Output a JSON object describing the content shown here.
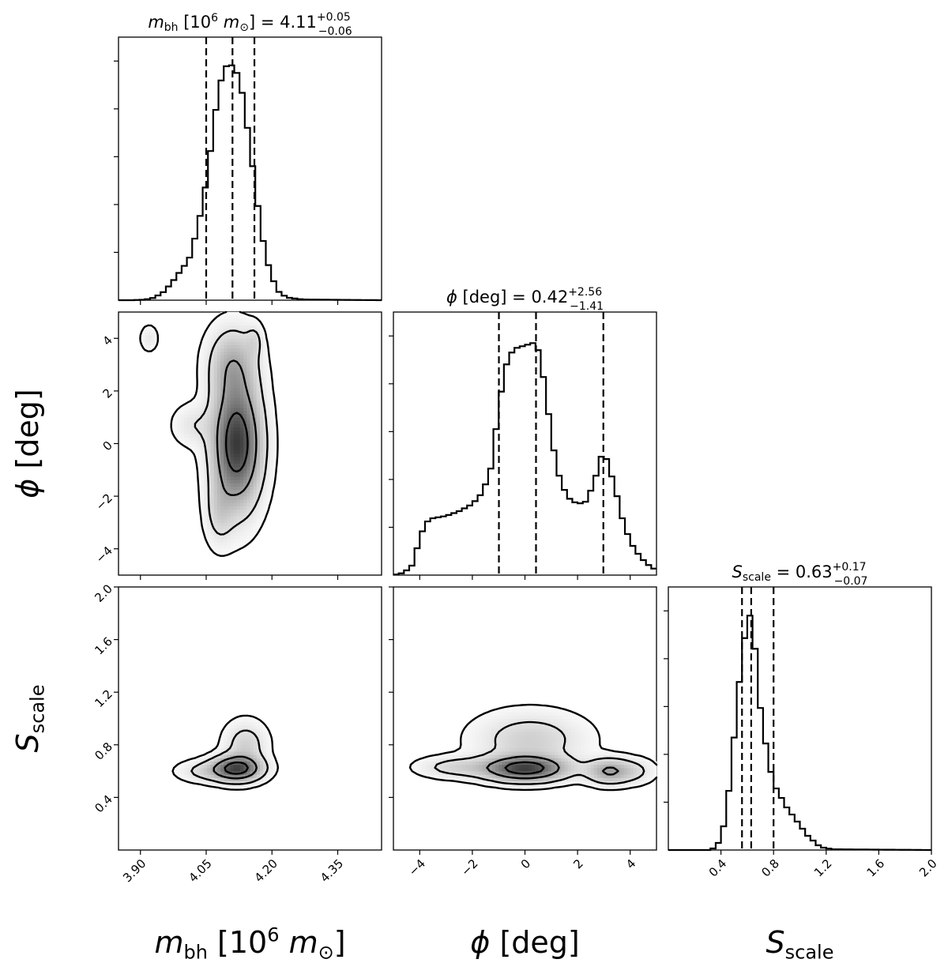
{
  "chart_data": {
    "type": "corner",
    "parameters": [
      {
        "key": "mbh",
        "label_main": "m",
        "label_sub": "bh",
        "label_unit_prefix": "[10",
        "label_unit_exp": "6",
        "label_unit_m": "m",
        "label_unit_sun": "⊙",
        "label_unit_close": "]",
        "range": [
          3.85,
          4.45
        ],
        "ticks": [
          "3.90",
          "4.05",
          "4.20",
          "4.35"
        ],
        "tick_values": [
          3.9,
          4.05,
          4.2,
          4.35
        ],
        "median": "4.11",
        "plus": "+0.05",
        "minus": "−0.06",
        "quantiles": [
          4.05,
          4.11,
          4.16
        ],
        "hist_density": [
          [
            3.85,
            0
          ],
          [
            3.88,
            0
          ],
          [
            3.91,
            0.002
          ],
          [
            3.93,
            0.01
          ],
          [
            3.95,
            0.03
          ],
          [
            3.97,
            0.07
          ],
          [
            3.99,
            0.12
          ],
          [
            4.01,
            0.17
          ],
          [
            4.02,
            0.22
          ],
          [
            4.03,
            0.32
          ],
          [
            4.04,
            0.38
          ],
          [
            4.05,
            0.5
          ],
          [
            4.06,
            0.63
          ],
          [
            4.07,
            0.78
          ],
          [
            4.08,
            0.9
          ],
          [
            4.09,
            0.97
          ],
          [
            4.1,
            1.0
          ],
          [
            4.11,
            0.99
          ],
          [
            4.12,
            0.96
          ],
          [
            4.13,
            0.9
          ],
          [
            4.14,
            0.78
          ],
          [
            4.15,
            0.65
          ],
          [
            4.16,
            0.51
          ],
          [
            4.17,
            0.37
          ],
          [
            4.18,
            0.25
          ],
          [
            4.19,
            0.16
          ],
          [
            4.2,
            0.1
          ],
          [
            4.21,
            0.05
          ],
          [
            4.22,
            0.025
          ],
          [
            4.24,
            0.01
          ],
          [
            4.27,
            0.003
          ],
          [
            4.45,
            0
          ]
        ]
      },
      {
        "key": "phi",
        "label_main": "ϕ",
        "label_unit": "[deg]",
        "range": [
          -5,
          5
        ],
        "ticks": [
          "−4",
          "−2",
          "0",
          "2",
          "4"
        ],
        "tick_values": [
          -4,
          -2,
          0,
          2,
          4
        ],
        "median": "0.42",
        "plus": "+2.56",
        "minus": "−1.41",
        "quantiles": [
          -0.99,
          0.42,
          2.98
        ],
        "hist_density": [
          [
            -5,
            0
          ],
          [
            -4.6,
            0.01
          ],
          [
            -4.3,
            0.04
          ],
          [
            -4.0,
            0.15
          ],
          [
            -3.8,
            0.22
          ],
          [
            -3.5,
            0.24
          ],
          [
            -3.0,
            0.25
          ],
          [
            -2.5,
            0.27
          ],
          [
            -2.0,
            0.3
          ],
          [
            -1.6,
            0.35
          ],
          [
            -1.3,
            0.45
          ],
          [
            -1.0,
            0.7
          ],
          [
            -0.8,
            0.85
          ],
          [
            -0.6,
            0.93
          ],
          [
            -0.3,
            0.96
          ],
          [
            0.0,
            0.97
          ],
          [
            0.3,
            0.98
          ],
          [
            0.5,
            0.95
          ],
          [
            0.8,
            0.78
          ],
          [
            1.0,
            0.58
          ],
          [
            1.3,
            0.42
          ],
          [
            1.6,
            0.33
          ],
          [
            2.0,
            0.3
          ],
          [
            2.3,
            0.31
          ],
          [
            2.6,
            0.38
          ],
          [
            2.9,
            0.5
          ],
          [
            3.1,
            0.49
          ],
          [
            3.4,
            0.38
          ],
          [
            3.7,
            0.24
          ],
          [
            4.0,
            0.14
          ],
          [
            4.3,
            0.09
          ],
          [
            4.6,
            0.05
          ],
          [
            5.0,
            0.02
          ]
        ]
      },
      {
        "key": "sscale",
        "label_main": "S",
        "label_sub": "scale",
        "range": [
          0,
          2
        ],
        "ticks": [
          "0.4",
          "0.8",
          "1.2",
          "1.6",
          "2.0"
        ],
        "tick_values": [
          0.4,
          0.8,
          1.2,
          1.6,
          2.0
        ],
        "median": "0.63",
        "plus": "+0.17",
        "minus": "−0.07",
        "quantiles": [
          0.56,
          0.63,
          0.8
        ],
        "hist_density": [
          [
            0,
            0
          ],
          [
            0.3,
            0
          ],
          [
            0.36,
            0.01
          ],
          [
            0.4,
            0.05
          ],
          [
            0.44,
            0.15
          ],
          [
            0.48,
            0.35
          ],
          [
            0.52,
            0.6
          ],
          [
            0.56,
            0.82
          ],
          [
            0.6,
            0.97
          ],
          [
            0.63,
            1.0
          ],
          [
            0.66,
            0.85
          ],
          [
            0.7,
            0.6
          ],
          [
            0.74,
            0.45
          ],
          [
            0.78,
            0.33
          ],
          [
            0.82,
            0.26
          ],
          [
            0.86,
            0.22
          ],
          [
            0.9,
            0.18
          ],
          [
            0.94,
            0.15
          ],
          [
            0.98,
            0.12
          ],
          [
            1.02,
            0.09
          ],
          [
            1.06,
            0.06
          ],
          [
            1.1,
            0.04
          ],
          [
            1.14,
            0.02
          ],
          [
            1.18,
            0.01
          ],
          [
            1.25,
            0.003
          ],
          [
            2.0,
            0
          ]
        ]
      }
    ],
    "joint_peaks": [
      {
        "x": "mbh",
        "y": "phi",
        "blobs": [
          {
            "cx": 4.12,
            "cy": 0.0,
            "sx": 0.035,
            "sy": 1.5,
            "w": 1.0
          },
          {
            "cx": 4.11,
            "cy": 3.0,
            "sx": 0.035,
            "sy": 0.9,
            "w": 0.35
          },
          {
            "cx": 4.08,
            "cy": -2.6,
            "sx": 0.02,
            "sy": 0.8,
            "w": 0.18
          },
          {
            "cx": 4.02,
            "cy": 0.7,
            "sx": 0.03,
            "sy": 0.5,
            "w": 0.12
          },
          {
            "cx": 3.92,
            "cy": 4.0,
            "sx": 0.012,
            "sy": 0.3,
            "w": 0.12
          },
          {
            "cx": 4.16,
            "cy": 3.9,
            "sx": 0.012,
            "sy": 0.4,
            "w": 0.14
          }
        ]
      },
      {
        "x": "mbh",
        "y": "sscale",
        "blobs": [
          {
            "cx": 4.12,
            "cy": 0.62,
            "sx": 0.035,
            "sy": 0.06,
            "w": 1.0
          },
          {
            "cx": 4.14,
            "cy": 0.8,
            "sx": 0.03,
            "sy": 0.11,
            "w": 0.25
          },
          {
            "cx": 4.05,
            "cy": 0.6,
            "sx": 0.04,
            "sy": 0.05,
            "w": 0.2
          }
        ]
      },
      {
        "x": "phi",
        "y": "sscale",
        "blobs": [
          {
            "cx": 0.0,
            "cy": 0.62,
            "sx": 1.0,
            "sy": 0.06,
            "w": 1.0
          },
          {
            "cx": 3.2,
            "cy": 0.6,
            "sx": 0.55,
            "sy": 0.06,
            "w": 0.5
          },
          {
            "cx": -2.6,
            "cy": 0.63,
            "sx": 0.9,
            "sy": 0.05,
            "w": 0.22
          },
          {
            "cx": 0.2,
            "cy": 0.84,
            "sx": 1.3,
            "sy": 0.13,
            "w": 0.25
          },
          {
            "cx": 4.2,
            "cy": 0.6,
            "sx": 0.5,
            "sy": 0.06,
            "w": 0.15
          }
        ]
      }
    ],
    "contour_levels": [
      0.78,
      0.45,
      0.14,
      0.03
    ],
    "grid": false,
    "legend": "none"
  }
}
